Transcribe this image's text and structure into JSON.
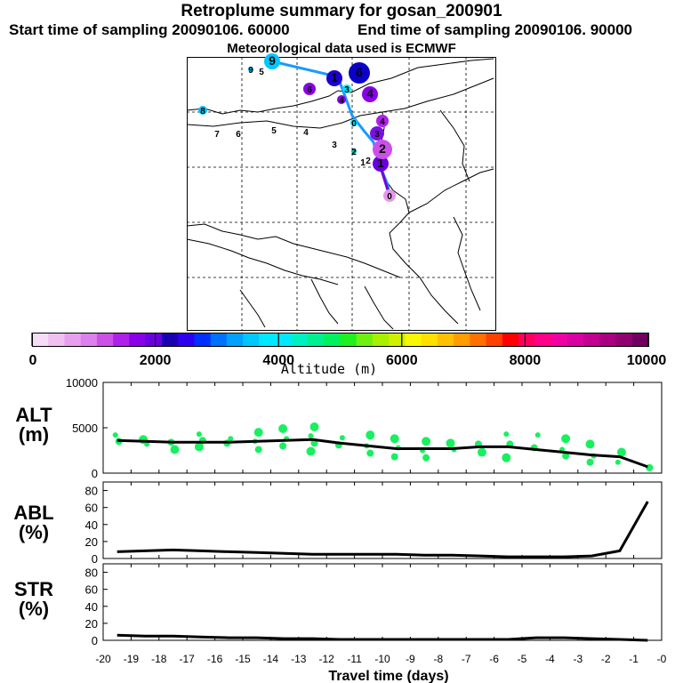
{
  "header": {
    "title": "Retroplume summary for gosan_200901",
    "start": "Start time of sampling 20090106. 60000",
    "end": "End time of sampling 20090106. 90000",
    "met": "Meteorological data used is ECMWF"
  },
  "colorbar": {
    "label": "Altitude (m)",
    "ticks": [
      "0",
      "2000",
      "4000",
      "6000",
      "8000",
      "10000"
    ],
    "colors": [
      "#f7dcf7",
      "#f0c0f0",
      "#e8a0ee",
      "#dc80ec",
      "#cc50e8",
      "#b020e8",
      "#8a00e8",
      "#6a00e0",
      "#1a00b0",
      "#2e00f0",
      "#0030ff",
      "#0070ff",
      "#00a0ff",
      "#00c8ff",
      "#00e8ff",
      "#00e8ff",
      "#00f0c0",
      "#00f090",
      "#00f060",
      "#20f020",
      "#70f010",
      "#a8f000",
      "#d0f000",
      "#f8f800",
      "#ffe000",
      "#ffc000",
      "#ff9c00",
      "#ff7000",
      "#ff4000",
      "#ff0000",
      "#ff0060",
      "#ff0088",
      "#f000a0",
      "#d800a0",
      "#c00090",
      "#a80080",
      "#900070",
      "#700060"
    ]
  },
  "map": {
    "trajectory": [
      {
        "label": "0",
        "color": "#e49ae8",
        "r": 7
      },
      {
        "label": "1",
        "color": "#6a00e0",
        "r": 9
      },
      {
        "label": "2",
        "color": "#cc50e8",
        "r": 11
      },
      {
        "label": "3",
        "color": "#7a10e0",
        "r": 8
      },
      {
        "label": "4",
        "color": "#b020e8",
        "r": 7
      },
      {
        "label": "0",
        "color": "#00e0ff",
        "r": 4
      },
      {
        "label": "4",
        "color": "#8a00e8",
        "r": 9
      },
      {
        "label": "3",
        "color": "#00e8ff",
        "r": 5
      },
      {
        "label": "1",
        "color": "#1a00d0",
        "r": 9
      },
      {
        "label": "6",
        "color": "#0a00c8",
        "r": 12
      },
      {
        "label": "6",
        "color": "#8a00e8",
        "r": 7
      },
      {
        "label": "4",
        "color": "#8a00e8",
        "r": 5
      },
      {
        "label": "9",
        "color": "#00c8ff",
        "r": 9
      },
      {
        "label": "9",
        "color": "#00c8ff",
        "r": 3
      },
      {
        "label": "5",
        "color": "#000000",
        "r": 0
      },
      {
        "label": "8",
        "color": "#00c8ff",
        "r": 5
      },
      {
        "label": "7",
        "color": "#000000",
        "r": 0
      },
      {
        "label": "6",
        "color": "#000000",
        "r": 0
      },
      {
        "label": "5",
        "color": "#000000",
        "r": 0
      },
      {
        "label": "4",
        "color": "#000000",
        "r": 0
      },
      {
        "label": "3",
        "color": "#000000",
        "r": 0
      },
      {
        "label": "2",
        "color": "#00c0b0",
        "r": 3
      },
      {
        "label": "1",
        "color": "#000000",
        "r": 0
      },
      {
        "label": "2",
        "color": "#000000",
        "r": 0
      }
    ]
  },
  "chart_data": [
    {
      "type": "scatter",
      "name": "ALT",
      "ylabel": "ALT\n(m)",
      "ylabel_lines": [
        "ALT",
        "(m)"
      ],
      "ylim": [
        0,
        10000
      ],
      "yticks": [
        "0",
        "5000",
        "10000"
      ],
      "x": [
        -19.5,
        -18.5,
        -17.5,
        -16.5,
        -15.5,
        -14.5,
        -13.5,
        -12.5,
        -11.5,
        -10.5,
        -9.5,
        -8.5,
        -7.5,
        -6.5,
        -5.5,
        -4.5,
        -3.5,
        -2.5,
        -1.5,
        -0.5
      ],
      "line": [
        3600,
        3500,
        3400,
        3400,
        3400,
        3500,
        3600,
        3700,
        3300,
        3000,
        2700,
        2700,
        2700,
        2900,
        2900,
        2600,
        2300,
        2000,
        1800,
        700
      ],
      "points": [
        [
          -19.5,
          4200
        ],
        [
          -19.5,
          3500
        ],
        [
          -18.5,
          3700
        ],
        [
          -18.5,
          3200
        ],
        [
          -17.5,
          3400
        ],
        [
          -17.5,
          2600
        ],
        [
          -16.5,
          4300
        ],
        [
          -16.5,
          3600
        ],
        [
          -16.5,
          2900
        ],
        [
          -15.5,
          3800
        ],
        [
          -15.5,
          3300
        ],
        [
          -14.5,
          4500
        ],
        [
          -14.5,
          3500
        ],
        [
          -14.5,
          2600
        ],
        [
          -13.5,
          4900
        ],
        [
          -13.5,
          3800
        ],
        [
          -13.5,
          3000
        ],
        [
          -12.5,
          5100
        ],
        [
          -12.5,
          4100
        ],
        [
          -12.5,
          3300
        ],
        [
          -12.5,
          2400
        ],
        [
          -11.5,
          3900
        ],
        [
          -11.5,
          3100
        ],
        [
          -10.5,
          4200
        ],
        [
          -10.5,
          3000
        ],
        [
          -10.5,
          2200
        ],
        [
          -9.5,
          3800
        ],
        [
          -9.5,
          2800
        ],
        [
          -9.5,
          1800
        ],
        [
          -8.5,
          3500
        ],
        [
          -8.5,
          2500
        ],
        [
          -8.5,
          1700
        ],
        [
          -7.5,
          3300
        ],
        [
          -7.5,
          2600
        ],
        [
          -6.5,
          3200
        ],
        [
          -6.5,
          2300
        ],
        [
          -5.5,
          4300
        ],
        [
          -5.5,
          3200
        ],
        [
          -5.5,
          1700
        ],
        [
          -4.5,
          4200
        ],
        [
          -4.5,
          2800
        ],
        [
          -3.5,
          3800
        ],
        [
          -3.5,
          2600
        ],
        [
          -3.5,
          1900
        ],
        [
          -2.5,
          3200
        ],
        [
          -2.5,
          1900
        ],
        [
          -2.5,
          1200
        ],
        [
          -1.5,
          2300
        ],
        [
          -1.5,
          1200
        ],
        [
          -0.5,
          600
        ]
      ],
      "marker_color": "#18f060"
    },
    {
      "type": "line",
      "name": "ABL",
      "ylabel": "ABL\n(%)",
      "ylabel_lines": [
        "ABL",
        "(%)"
      ],
      "ylim": [
        0,
        90
      ],
      "yticks": [
        "0",
        "20",
        "40",
        "60",
        "80"
      ],
      "x": [
        -19.5,
        -18.5,
        -17.5,
        -16.5,
        -15.5,
        -14.5,
        -13.5,
        -12.5,
        -11.5,
        -10.5,
        -9.5,
        -8.5,
        -7.5,
        -6.5,
        -5.5,
        -4.5,
        -3.5,
        -2.5,
        -1.5,
        -0.5
      ],
      "values": [
        8,
        9,
        10,
        9,
        8,
        7,
        6,
        5,
        5,
        5,
        5,
        4,
        4,
        3,
        2,
        2,
        2,
        3,
        9,
        67
      ]
    },
    {
      "type": "line",
      "name": "STR",
      "ylabel": "STR\n(%)",
      "ylabel_lines": [
        "STR",
        "(%)"
      ],
      "ylim": [
        0,
        90
      ],
      "yticks": [
        "0",
        "20",
        "40",
        "60",
        "80"
      ],
      "x": [
        -19.5,
        -18.5,
        -17.5,
        -16.5,
        -15.5,
        -14.5,
        -13.5,
        -12.5,
        -11.5,
        -10.5,
        -9.5,
        -8.5,
        -7.5,
        -6.5,
        -5.5,
        -4.5,
        -3.5,
        -2.5,
        -1.5,
        -0.5
      ],
      "values": [
        6,
        5,
        5,
        4,
        3,
        3,
        2,
        2,
        1,
        1,
        1,
        1,
        1,
        1,
        1,
        3,
        3,
        2,
        1,
        0
      ],
      "xlabel": "Travel time (days)",
      "xlim": [
        -20,
        0
      ],
      "xticks": [
        "-20",
        "-19",
        "-18",
        "-17",
        "-16",
        "-15",
        "-14",
        "-13",
        "-12",
        "-11",
        "-10",
        "-9",
        "-8",
        "-7",
        "-6",
        "-5",
        "-4",
        "-3",
        "-2",
        "-1",
        "-0"
      ]
    }
  ]
}
